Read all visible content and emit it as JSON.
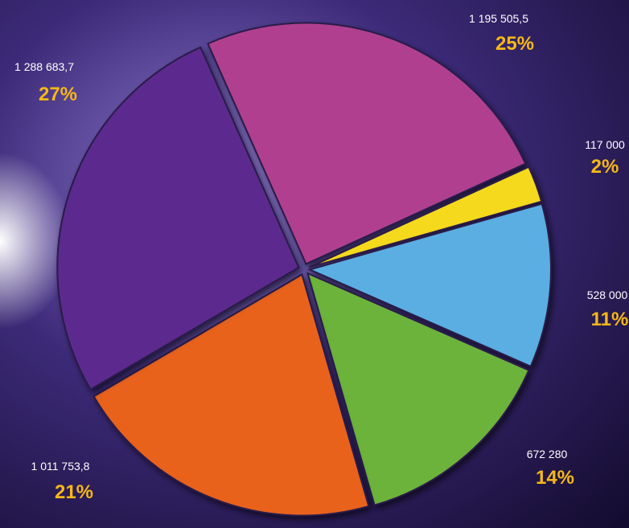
{
  "chart_data": {
    "type": "pie",
    "categories": [
      null,
      null,
      null,
      null,
      null,
      null
    ],
    "values": [
      1195505.5,
      117000,
      528000,
      672280,
      1011753.8,
      1288683.7
    ],
    "value_labels": [
      "1 195 505,5",
      "117 000",
      "528 000",
      "672 280",
      "1 011 753,8",
      "1 288 683,7"
    ],
    "percent_labels": [
      "25%",
      "2%",
      "11%",
      "14%",
      "21%",
      "27%"
    ],
    "colors": [
      "#b0408f",
      "#f5d91c",
      "#5aaee2",
      "#6cb33a",
      "#e8621e",
      "#5b2a8e"
    ]
  }
}
